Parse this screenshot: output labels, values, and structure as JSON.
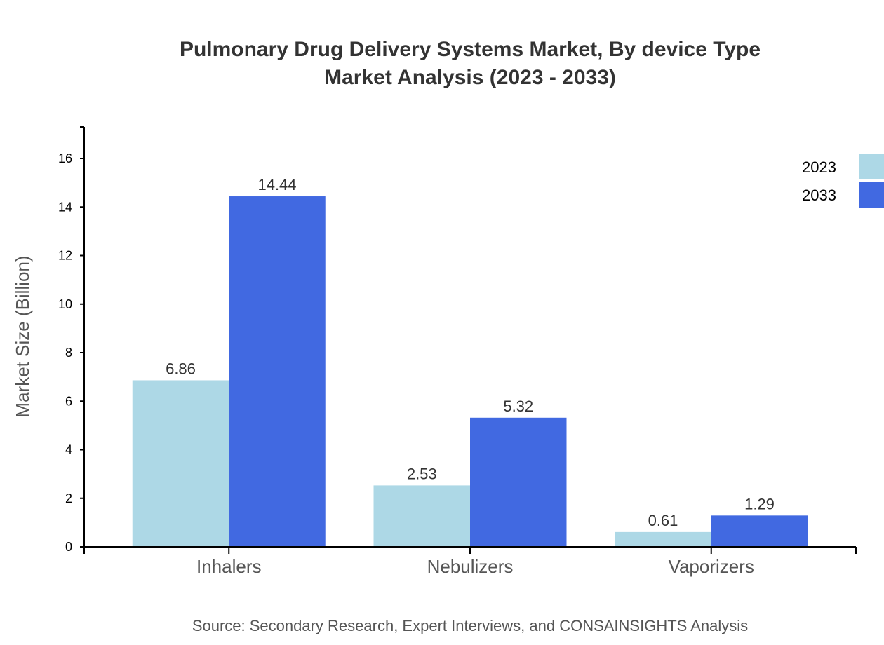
{
  "chart_data": {
    "type": "bar",
    "title": "Pulmonary Drug Delivery Systems Market, By device Type",
    "subtitle": "Market Analysis (2023 - 2033)",
    "xlabel": "",
    "ylabel": "Market Size (Billion)",
    "categories": [
      "Inhalers",
      "Nebulizers",
      "Vaporizers"
    ],
    "series": [
      {
        "name": "2023",
        "color": "#add8e6",
        "values": [
          6.86,
          2.53,
          0.61
        ],
        "labels": [
          "6.86",
          "2.53",
          "0.61"
        ]
      },
      {
        "name": "2033",
        "color": "#4169e1",
        "values": [
          14.44,
          5.32,
          1.29
        ],
        "labels": [
          "14.44",
          "5.32",
          "1.29"
        ]
      }
    ],
    "ylim": [
      0,
      17.3
    ],
    "yticks": [
      "0",
      "2",
      "4",
      "6",
      "8",
      "10",
      "12",
      "14",
      "16"
    ],
    "grid": false,
    "legend_position": "top-right",
    "source": "Source: Secondary Research, Expert Interviews, and CONSAINSIGHTS Analysis"
  }
}
